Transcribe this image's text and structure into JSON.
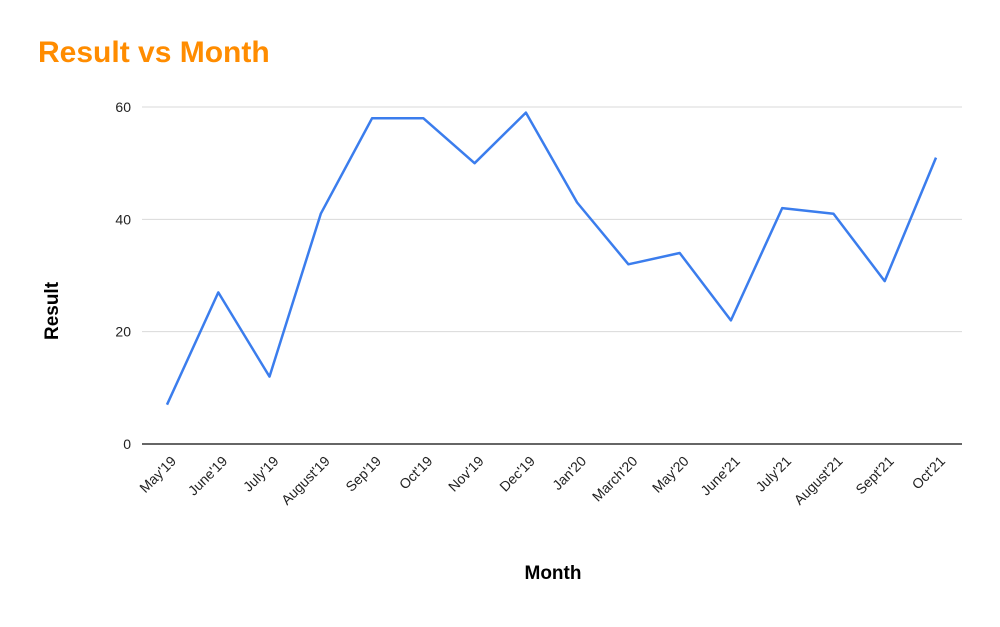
{
  "chart_data": {
    "type": "line",
    "title": "Result vs Month",
    "xlabel": "Month",
    "ylabel": "Result",
    "categories": [
      "May'19",
      "June'19",
      "July'19",
      "August'19",
      "Sep'19",
      "Oct'19",
      "Nov'19",
      "Dec'19",
      "Jan'20",
      "March'20",
      "May'20",
      "June'21",
      "July'21",
      "August'21",
      "Sept'21",
      "Oct'21"
    ],
    "series": [
      {
        "values": [
          7,
          27,
          12,
          41,
          58,
          58,
          50,
          59,
          43,
          32,
          34,
          22,
          42,
          41,
          29,
          51
        ]
      }
    ],
    "ylim": [
      0,
      60
    ],
    "yticks": [
      0,
      20,
      40,
      60
    ],
    "grid": true,
    "line_color": "#3b7ded",
    "title_color": "#ff8c00"
  }
}
